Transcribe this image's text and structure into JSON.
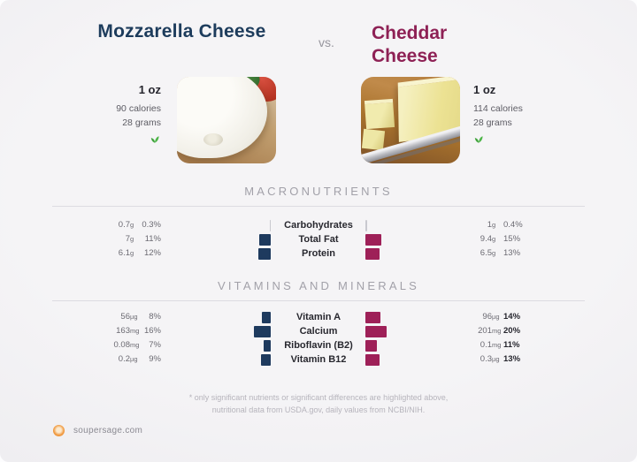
{
  "header": {
    "left_title": "Mozzarella Cheese",
    "vs": "vs.",
    "right_title_line1": "Cheddar",
    "right_title_line2": "Cheese"
  },
  "left_food": {
    "serving": "1 oz",
    "calories": "90 calories",
    "grams": "28 grams",
    "image": "mozzarella-ball-photo"
  },
  "right_food": {
    "serving": "1 oz",
    "calories": "114 calories",
    "grams": "28 grams",
    "image": "cheddar-block-with-knife-photo"
  },
  "footnote": {
    "line1": "* only significant nutrients or significant differences are highlighted above,",
    "line2": "nutritional data from USDA.gov, daily values from NCBI/NIH."
  },
  "footer": {
    "site": "soupersage.com"
  },
  "colors": {
    "left_title": "#1d3c5c",
    "right_title": "#8e2155",
    "left_bar": "#1e3a5e",
    "right_bar": "#9e2058",
    "tiny_bar": "#c9c9cf",
    "sprout_green": "#3fa33b",
    "logo_orange": "#f09a40"
  },
  "chart_data": {
    "type": "bar",
    "title": "Mozzarella Cheese vs. Cheddar Cheese — nutrients per 1 oz (bar length = % daily value)",
    "legend_position": "none",
    "series": [
      {
        "name": "Mozzarella Cheese",
        "color": "#1e3a5e",
        "side": "left"
      },
      {
        "name": "Cheddar Cheese",
        "color": "#9e2058",
        "side": "right"
      }
    ],
    "sections": [
      {
        "title": "MACRONUTRIENTS",
        "highlight_right": false,
        "rows": [
          {
            "label": "Carbohydrates",
            "left_amount": "0.7",
            "left_unit": "g",
            "left_pct": "0.3%",
            "left_pct_value": 0.3,
            "right_amount": "1",
            "right_unit": "g",
            "right_pct": "0.4%",
            "right_pct_value": 0.4
          },
          {
            "label": "Total Fat",
            "left_amount": "7",
            "left_unit": "g",
            "left_pct": "11%",
            "left_pct_value": 11,
            "right_amount": "9.4",
            "right_unit": "g",
            "right_pct": "15%",
            "right_pct_value": 15
          },
          {
            "label": "Protein",
            "left_amount": "6.1",
            "left_unit": "g",
            "left_pct": "12%",
            "left_pct_value": 12,
            "right_amount": "6.5",
            "right_unit": "g",
            "right_pct": "13%",
            "right_pct_value": 13
          }
        ]
      },
      {
        "title": "VITAMINS AND MINERALS",
        "highlight_right": true,
        "rows": [
          {
            "label": "Vitamin A",
            "left_amount": "56",
            "left_unit": "µg",
            "left_pct": "8%",
            "left_pct_value": 8,
            "right_amount": "96",
            "right_unit": "µg",
            "right_pct": "14%",
            "right_pct_value": 14
          },
          {
            "label": "Calcium",
            "left_amount": "163",
            "left_unit": "mg",
            "left_pct": "16%",
            "left_pct_value": 16,
            "right_amount": "201",
            "right_unit": "mg",
            "right_pct": "20%",
            "right_pct_value": 20
          },
          {
            "label": "Riboflavin (B2)",
            "left_amount": "0.08",
            "left_unit": "mg",
            "left_pct": "7%",
            "left_pct_value": 7,
            "right_amount": "0.1",
            "right_unit": "mg",
            "right_pct": "11%",
            "right_pct_value": 11
          },
          {
            "label": "Vitamin B12",
            "left_amount": "0.2",
            "left_unit": "µg",
            "left_pct": "9%",
            "left_pct_value": 9,
            "right_amount": "0.3",
            "right_unit": "µg",
            "right_pct": "13%",
            "right_pct_value": 13
          }
        ]
      }
    ]
  }
}
